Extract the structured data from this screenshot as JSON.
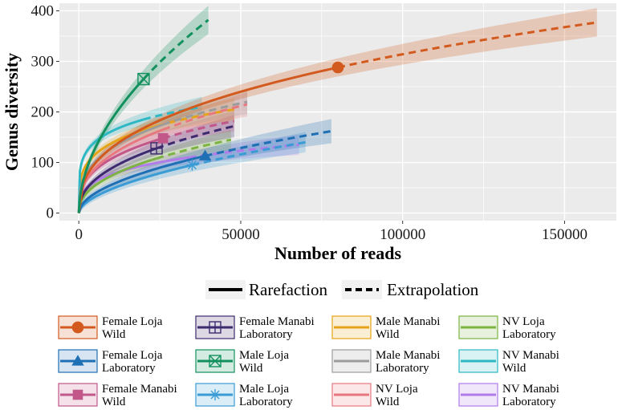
{
  "chart_data": {
    "type": "line",
    "title": "",
    "xlabel": "Number of reads",
    "ylabel": "Genus diversity",
    "xlim": [
      -6000,
      166000
    ],
    "ylim": [
      -15,
      415
    ],
    "x_ticks": [
      0,
      50000,
      100000,
      150000
    ],
    "x_tick_labels": [
      "0",
      "50000",
      "100000",
      "150000"
    ],
    "y_ticks": [
      0,
      100,
      200,
      300,
      400
    ],
    "y_tick_labels": [
      "0",
      "100",
      "200",
      "300",
      "400"
    ],
    "grid": true,
    "line_types": [
      {
        "name": "Rarefaction",
        "style": "solid"
      },
      {
        "name": "Extrapolation",
        "style": "dashed"
      }
    ],
    "series": [
      {
        "id": "female-loja-wild",
        "name": "Female Loja Wild",
        "line1": "Female Loja",
        "line2": "Wild",
        "color": "#D35A1E",
        "marker": "circle",
        "obs_x": 80000,
        "obs_y": 288,
        "end_x": 160000,
        "end_y": 377,
        "ci_start": 8,
        "ci_end": 28
      },
      {
        "id": "female-loja-laboratory",
        "name": "Female Loja Laboratory",
        "line1": "Female Loja",
        "line2": "Laboratory",
        "color": "#1F6FB5",
        "marker": "triangle",
        "obs_x": 39000,
        "obs_y": 113,
        "end_x": 78000,
        "end_y": 162,
        "ci_start": 6,
        "ci_end": 24
      },
      {
        "id": "female-manabi-wild",
        "name": "Female Manabi Wild",
        "line1": "Female Manabi",
        "line2": "Wild",
        "color": "#C2578A",
        "marker": "square",
        "obs_x": 26000,
        "obs_y": 148,
        "end_x": 48000,
        "end_y": 182,
        "ci_start": 6,
        "ci_end": 20
      },
      {
        "id": "female-manabi-laboratory",
        "name": "Female Manabi Laboratory",
        "line1": "Female Manabi",
        "line2": "Laboratory",
        "color": "#3E2A6E",
        "marker": "cross-square",
        "obs_x": 24000,
        "obs_y": 128,
        "end_x": 48000,
        "end_y": 172,
        "ci_start": 6,
        "ci_end": 22
      },
      {
        "id": "male-loja-wild",
        "name": "Male Loja Wild",
        "line1": "Male Loja",
        "line2": "Wild",
        "color": "#12915E",
        "marker": "x-square",
        "obs_x": 20000,
        "obs_y": 265,
        "end_x": 40000,
        "end_y": 382,
        "ci_start": 8,
        "ci_end": 28
      },
      {
        "id": "male-loja-laboratory",
        "name": "Male Loja Laboratory",
        "line1": "Male Loja",
        "line2": "Laboratory",
        "color": "#3A9BD5",
        "marker": "asterisk",
        "obs_x": 35000,
        "obs_y": 95,
        "end_x": 70000,
        "end_y": 140,
        "ci_start": 6,
        "ci_end": 20
      },
      {
        "id": "male-manabi-wild",
        "name": "Male Manabi Wild",
        "line1": "Male Manabi",
        "line2": "Wild",
        "color": "#E5A318",
        "marker": "none",
        "obs_x": 24000,
        "obs_y": 172,
        "end_x": 48000,
        "end_y": 205,
        "ci_start": 6,
        "ci_end": 22
      },
      {
        "id": "male-manabi-laboratory",
        "name": "Male Manabi Laboratory",
        "line1": "Male Manabi",
        "line2": "Laboratory",
        "color": "#9C9C9C",
        "marker": "none",
        "obs_x": 26000,
        "obs_y": 175,
        "end_x": 52000,
        "end_y": 220,
        "ci_start": 6,
        "ci_end": 24
      },
      {
        "id": "nv-loja-wild",
        "name": "NV Loja Wild",
        "line1": "NV Loja",
        "line2": "Wild",
        "color": "#E8787F",
        "marker": "none",
        "obs_x": 26000,
        "obs_y": 165,
        "end_x": 52000,
        "end_y": 215,
        "ci_start": 6,
        "ci_end": 24
      },
      {
        "id": "nv-loja-laboratory",
        "name": "NV Loja Laboratory",
        "line1": "NV Loja",
        "line2": "Laboratory",
        "color": "#7CB342",
        "marker": "none",
        "obs_x": 24000,
        "obs_y": 108,
        "end_x": 47000,
        "end_y": 145,
        "ci_start": 6,
        "ci_end": 20
      },
      {
        "id": "nv-manabi-wild",
        "name": "NV Manabi Wild",
        "line1": "NV Manabi",
        "line2": "Wild",
        "color": "#2EB8C4",
        "marker": "none",
        "obs_x": 20000,
        "obs_y": 185,
        "end_x": 38000,
        "end_y": 210,
        "ci_start": 6,
        "ci_end": 20
      },
      {
        "id": "nv-manabi-laboratory",
        "name": "NV Manabi Laboratory",
        "line1": "NV Manabi",
        "line2": "Laboratory",
        "color": "#B27BEA",
        "marker": "none",
        "obs_x": 34000,
        "obs_y": 110,
        "end_x": 68000,
        "end_y": 135,
        "ci_start": 6,
        "ci_end": 20
      }
    ]
  }
}
